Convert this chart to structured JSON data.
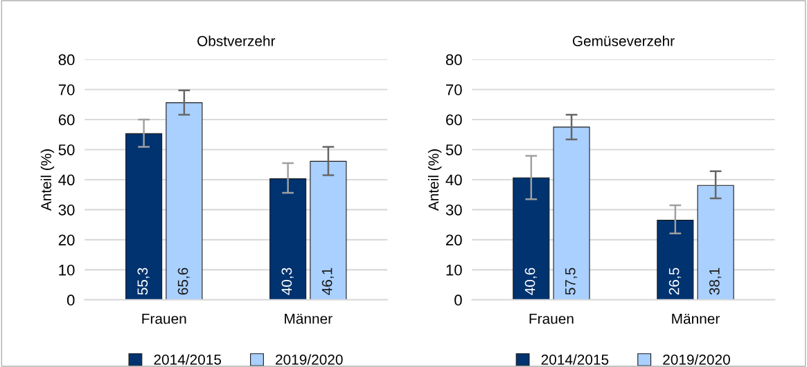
{
  "chart_data": [
    {
      "type": "bar",
      "title": "Obstverzehr",
      "ylabel": "Anteil (%)",
      "categories": [
        "Frauen",
        "Männer"
      ],
      "ylim": [
        0,
        80
      ],
      "yticks": [
        0,
        10,
        20,
        30,
        40,
        50,
        60,
        70,
        80
      ],
      "grid": "y",
      "legend": "bottom",
      "series": [
        {
          "name": "2014/2015",
          "color": "#003370",
          "values": [
            55.3,
            40.3
          ],
          "value_labels": [
            "55,3",
            "40,3"
          ],
          "errors": [
            [
              50.9,
              60.0
            ],
            [
              35.6,
              45.5
            ]
          ]
        },
        {
          "name": "2019/2020",
          "color": "#a9d0ff",
          "values": [
            65.6,
            46.1
          ],
          "value_labels": [
            "65,6",
            "46,1"
          ],
          "errors": [
            [
              61.6,
              69.7
            ],
            [
              41.5,
              50.9
            ]
          ]
        }
      ]
    },
    {
      "type": "bar",
      "title": "Gemüseverzehr",
      "ylabel": "Anteil (%)",
      "categories": [
        "Frauen",
        "Männer"
      ],
      "ylim": [
        0,
        80
      ],
      "yticks": [
        0,
        10,
        20,
        30,
        40,
        50,
        60,
        70,
        80
      ],
      "grid": "y",
      "legend": "bottom",
      "series": [
        {
          "name": "2014/2015",
          "color": "#003370",
          "values": [
            40.6,
            26.5
          ],
          "value_labels": [
            "40,6",
            "26,5"
          ],
          "errors": [
            [
              33.5,
              47.9
            ],
            [
              22.1,
              31.5
            ]
          ]
        },
        {
          "name": "2019/2020",
          "color": "#a9d0ff",
          "values": [
            57.5,
            38.1
          ],
          "value_labels": [
            "57,5",
            "38,1"
          ],
          "errors": [
            [
              53.4,
              61.6
            ],
            [
              33.8,
              42.8
            ]
          ]
        }
      ]
    }
  ]
}
